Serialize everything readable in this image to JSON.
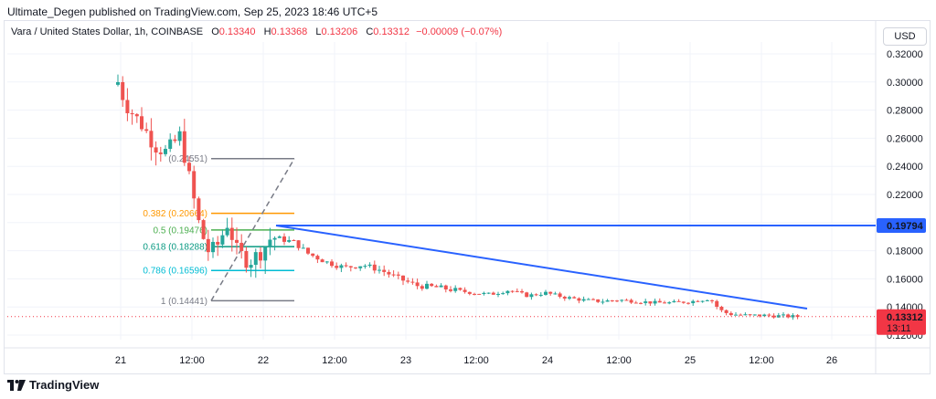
{
  "header": {
    "published": "Ultimate_Degen published on TradingView.com, Sep 25, 2023 18:46 UTC+5"
  },
  "legend": {
    "symbol": "Vara / United States Dollar, 1h, COINBASE",
    "o_label": "O",
    "o_value": "0.13340",
    "h_label": "H",
    "h_value": "0.13368",
    "l_label": "L",
    "l_value": "0.13206",
    "c_label": "C",
    "c_value": "0.13312",
    "change": "−0.00009 (−0.07%)"
  },
  "currency_button": "USD",
  "brand": "TradingView",
  "colors": {
    "up": "#26a69a",
    "down": "#ef5350",
    "trendline": "#2962ff",
    "fib_0382": "#ff9800",
    "fib_05": "#4caf50",
    "fib_0618": "#089981",
    "fib_0786": "#00bcd4",
    "fib_frame": "#787b86",
    "price_tag": "#f23645"
  },
  "chart_data": {
    "type": "candlestick",
    "y_axis_labels": [
      "0.32000",
      "0.30000",
      "0.28000",
      "0.26000",
      "0.24000",
      "0.22000",
      "0.20000",
      "0.18000",
      "0.16000",
      "0.14000",
      "0.12000"
    ],
    "x_axis_labels": [
      "21",
      "12:00",
      "22",
      "12:00",
      "23",
      "12:00",
      "24",
      "12:00",
      "25",
      "12:00",
      "26"
    ],
    "ylim": [
      0.115,
      0.335
    ],
    "x": [
      "21",
      "12:00",
      "22",
      "12:00",
      "23",
      "12:00",
      "24",
      "12:00",
      "25",
      "12:00",
      "26"
    ],
    "close_approx": [
      0.3,
      0.26,
      0.17,
      0.18,
      0.17,
      0.16,
      0.15,
      0.148,
      0.147,
      0.134,
      0.133
    ],
    "fib_levels": [
      {
        "label": "(0.24551)",
        "value": 0.24551
      },
      {
        "label": "0.382 (0.20664)",
        "value": 0.20664
      },
      {
        "label": "0.5 (0.19476)",
        "value": 0.19476
      },
      {
        "label": "0.618 (0.18288)",
        "value": 0.18288
      },
      {
        "label": "0.786 (0.16596)",
        "value": 0.16596
      },
      {
        "label": "1 (0.14441)",
        "value": 0.14441
      }
    ],
    "horizontal_line": {
      "value": 0.19794,
      "label": "0.19794"
    },
    "trendline": {
      "from": 0.19794,
      "to": 0.1388
    },
    "current_price": {
      "label": "0.13312",
      "countdown": "13:11",
      "value": 0.13312
    }
  }
}
